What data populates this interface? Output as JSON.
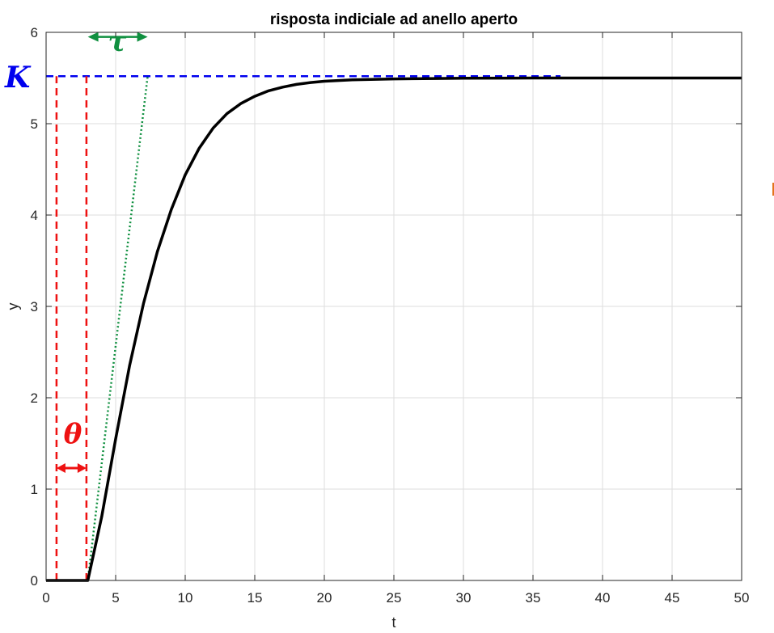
{
  "chart_data": {
    "type": "line",
    "title": "risposta indiciale ad anello aperto",
    "xlabel": "t",
    "ylabel": "y",
    "xlim": [
      0,
      50
    ],
    "ylim": [
      0,
      6
    ],
    "grid": true,
    "xticks": [
      "0",
      "5",
      "10",
      "15",
      "20",
      "25",
      "30",
      "35",
      "40",
      "45",
      "50"
    ],
    "yticks": [
      "0",
      "1",
      "2",
      "3",
      "4",
      "5",
      "6"
    ],
    "series": [
      {
        "style": "solid",
        "color": "#000000",
        "x": [
          0,
          3,
          4,
          5,
          6,
          7,
          8,
          9,
          10,
          11,
          12,
          13,
          14,
          15,
          16,
          17,
          18,
          19,
          20,
          22,
          25,
          28,
          30,
          35,
          40,
          45,
          50
        ],
        "y": [
          0,
          0,
          0.7,
          1.55,
          2.35,
          3.03,
          3.6,
          4.06,
          4.44,
          4.73,
          4.95,
          5.11,
          5.22,
          5.3,
          5.36,
          5.4,
          5.43,
          5.45,
          5.465,
          5.48,
          5.49,
          5.495,
          5.497,
          5.5,
          5.5,
          5.5,
          5.5
        ]
      }
    ],
    "annotations": {
      "K": {
        "label": "K",
        "value": 5.52,
        "color": "#0000ee"
      },
      "tau": {
        "label": "τ",
        "from": 3,
        "to": 7.3,
        "color": "#109040"
      },
      "theta": {
        "label": "θ",
        "from": 0.75,
        "to": 2.9,
        "arrow_y": 1.23,
        "color": "#ee1111"
      }
    }
  }
}
